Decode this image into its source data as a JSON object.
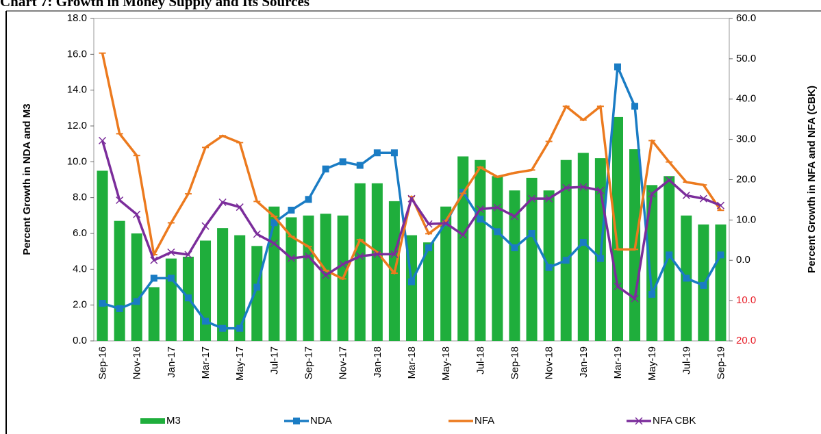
{
  "chart_data": {
    "type": "bar_line",
    "title": "Chart 7: Growth in Money Supply and Its Sources",
    "ylabel": "Percent Growth in NDA and M3",
    "y2label": "Percent Growth in NFA and NFA (CBK)",
    "categories": [
      "Sep-16",
      null,
      "Nov-16",
      null,
      "Jan-17",
      null,
      "Mar-17",
      null,
      "May-17",
      null,
      "Jul-17",
      null,
      "Sep-17",
      null,
      "Nov-17",
      null,
      "Jan-18",
      null,
      "Mar-18",
      null,
      "May-18",
      null,
      "Jul-18",
      null,
      "Sep-18",
      null,
      "Nov-18",
      null,
      "Jan-19",
      null,
      "Mar-19",
      null,
      "May-19",
      null,
      "Jul-19",
      null,
      "Sep-19"
    ],
    "series": [
      {
        "name": "M3",
        "type": "bar",
        "color": "#1fae3c",
        "values": [
          9.5,
          6.7,
          6.0,
          3.0,
          4.6,
          4.7,
          5.6,
          6.3,
          5.9,
          5.3,
          7.5,
          6.9,
          7.0,
          7.1,
          7.0,
          8.8,
          8.8,
          7.8,
          5.9,
          5.5,
          7.5,
          10.3,
          10.1,
          9.2,
          8.4,
          9.1,
          8.4,
          10.1,
          10.5,
          10.2,
          12.5,
          10.7,
          8.7,
          9.2,
          7.0,
          6.5,
          6.5
        ]
      },
      {
        "name": "NDA",
        "type": "line",
        "marker": "square",
        "color": "#1a7cc4",
        "values": [
          2.1,
          1.8,
          2.2,
          3.5,
          3.5,
          2.4,
          1.1,
          0.7,
          0.7,
          3.0,
          6.6,
          7.3,
          7.9,
          9.6,
          10.0,
          9.8,
          10.5,
          10.5,
          3.3,
          5.2,
          6.6,
          8.3,
          6.8,
          6.1,
          5.2,
          6.0,
          4.1,
          4.5,
          5.5,
          4.6,
          15.3,
          13.1,
          2.6,
          4.8,
          3.5,
          3.1,
          4.8
        ]
      },
      {
        "name": "NFA",
        "type": "line",
        "marker": "dash",
        "axis": "y2",
        "color": "#ec7a1e",
        "values": [
          51.4,
          31.4,
          26.0,
          1.4,
          9.3,
          16.5,
          28.0,
          30.9,
          29.2,
          14.6,
          10.9,
          5.9,
          3.4,
          -2.5,
          -4.6,
          5.1,
          2.0,
          -3.2,
          15.8,
          6.6,
          9.8,
          16.6,
          23.1,
          20.7,
          21.7,
          22.4,
          29.5,
          38.2,
          34.8,
          38.2,
          2.7,
          2.7,
          29.7,
          24.4,
          19.4,
          18.7,
          12.4
        ]
      },
      {
        "name": "NFA CBK",
        "type": "line",
        "marker": "x",
        "axis": "y2",
        "color": "#7b2d9b",
        "values": [
          29.7,
          14.9,
          11.4,
          0.0,
          2.0,
          1.4,
          8.5,
          14.4,
          13.2,
          6.5,
          4.2,
          0.5,
          1.0,
          -3.7,
          -1.0,
          1.0,
          1.5,
          1.5,
          15.3,
          9.0,
          9.2,
          6.3,
          12.7,
          13.1,
          10.9,
          15.3,
          15.3,
          18.0,
          18.2,
          17.3,
          -6.5,
          -9.5,
          16.5,
          19.9,
          16.1,
          15.3,
          13.6
        ]
      }
    ],
    "ylim": [
      0,
      18
    ],
    "yticks": [
      {
        "value": 0,
        "label": "0.0"
      },
      {
        "value": 2,
        "label": "2.0"
      },
      {
        "value": 4,
        "label": "4.0"
      },
      {
        "value": 6,
        "label": "6.0"
      },
      {
        "value": 8,
        "label": "8.0"
      },
      {
        "value": 10,
        "label": "10.0"
      },
      {
        "value": 12,
        "label": "12.0"
      },
      {
        "value": 14,
        "label": "14.0"
      },
      {
        "value": 16,
        "label": "16.0"
      },
      {
        "value": 18,
        "label": "18.0"
      }
    ],
    "y2lim": [
      -20,
      60
    ],
    "y2ticks": [
      {
        "value": -20,
        "label": "20.0"
      },
      {
        "value": -10,
        "label": "10.0"
      },
      {
        "value": 0,
        "label": "0.0"
      },
      {
        "value": 10,
        "label": "10.0"
      },
      {
        "value": 20,
        "label": "20.0"
      },
      {
        "value": 30,
        "label": "30.0"
      },
      {
        "value": 40,
        "label": "40.0"
      },
      {
        "value": 50,
        "label": "50.0"
      },
      {
        "value": 60,
        "label": "60.0"
      }
    ],
    "y2_negative_tick_color": "#e8202a",
    "legend": "bottom"
  }
}
